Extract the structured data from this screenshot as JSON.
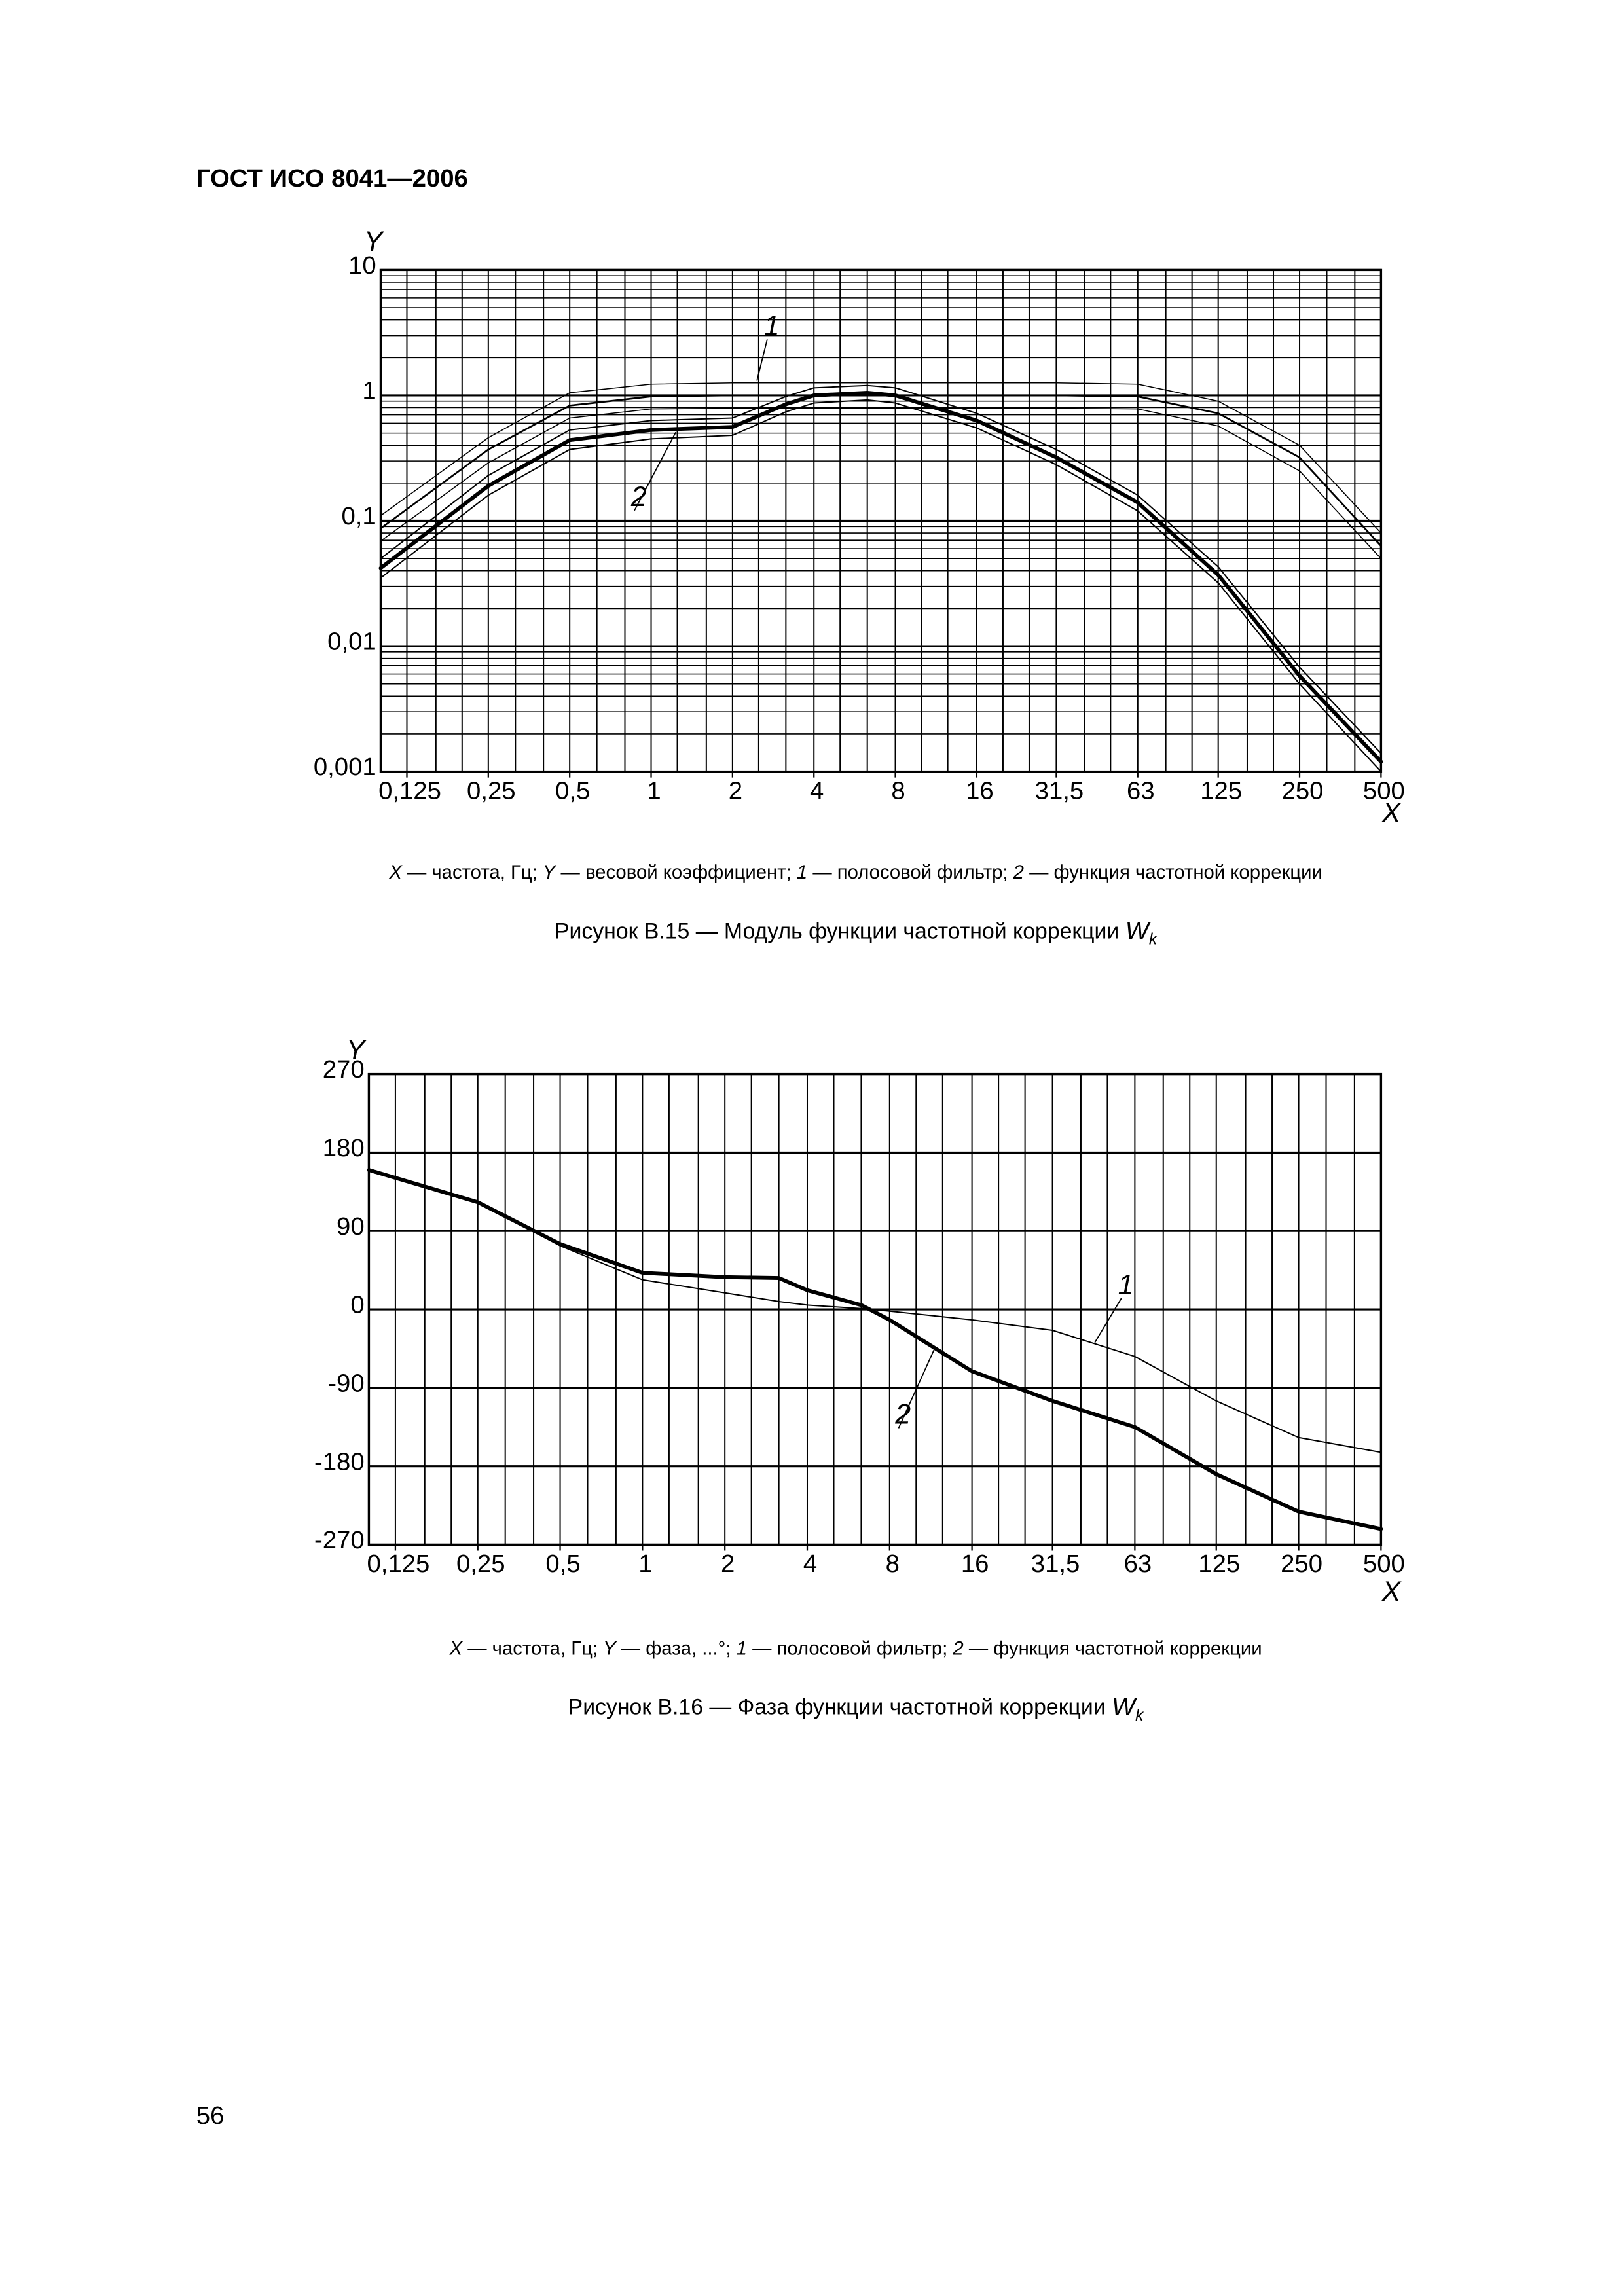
{
  "header": "ГОСТ ИСО 8041—2006",
  "page_number": "56",
  "chart_data": [
    {
      "type": "line",
      "xscale": "log",
      "yscale": "log",
      "ylabel": "Y",
      "xlabel": "X",
      "xlim": [
        0.1,
        500
      ],
      "ylim": [
        0.001,
        10
      ],
      "xticks": [
        {
          "value": 0.125,
          "label": "0,125"
        },
        {
          "value": 0.25,
          "label": "0,25"
        },
        {
          "value": 0.5,
          "label": "0,5"
        },
        1,
        2,
        4,
        8,
        16,
        {
          "value": 31.5,
          "label": "31,5"
        },
        63,
        125,
        250,
        500
      ],
      "yticks": [
        {
          "value": 0.001,
          "label": "0,001"
        },
        {
          "value": 0.01,
          "label": "0,01"
        },
        {
          "value": 0.1,
          "label": "0,1"
        },
        1,
        10
      ],
      "xgrid": [
        0.1,
        0.125,
        0.16,
        0.2,
        0.25,
        0.315,
        0.4,
        0.5,
        0.63,
        0.8,
        1,
        1.25,
        1.6,
        2,
        2.5,
        3.15,
        4,
        5,
        6.3,
        8,
        10,
        12.5,
        16,
        20,
        25,
        31.5,
        40,
        50,
        63,
        80,
        100,
        125,
        160,
        200,
        250,
        315,
        400,
        500
      ],
      "ygrid": [
        0.002,
        0.003,
        0.004,
        0.005,
        0.006,
        0.007,
        0.008,
        0.009,
        0.02,
        0.03,
        0.04,
        0.05,
        0.06,
        0.07,
        0.08,
        0.09,
        0.2,
        0.3,
        0.4,
        0.5,
        0.6,
        0.7,
        0.8,
        0.9,
        2,
        3,
        4,
        5,
        6,
        7,
        8,
        9
      ],
      "x": [
        0.1,
        0.25,
        0.5,
        1,
        2,
        3.15,
        4,
        6.3,
        8,
        16,
        31.5,
        63,
        125,
        250,
        500
      ],
      "series": [
        {
          "name": "1",
          "color": "#000000",
          "width": 1.2,
          "values": [
            0.087,
            0.37,
            0.83,
            0.98,
            1,
            1,
            1,
            1,
            1,
            1,
            1,
            0.98,
            0.72,
            0.32,
            0.063
          ]
        },
        {
          "color": "#000000",
          "width": 0.7,
          "values": [
            0.11,
            0.46,
            1.05,
            1.23,
            1.26,
            1.26,
            1.26,
            1.26,
            1.26,
            1.26,
            1.26,
            1.23,
            0.9,
            0.4,
            0.08
          ]
        },
        {
          "color": "#000000",
          "width": 0.7,
          "values": [
            0.069,
            0.29,
            0.66,
            0.78,
            0.79,
            0.79,
            0.79,
            0.79,
            0.79,
            0.79,
            0.79,
            0.78,
            0.57,
            0.25,
            0.05
          ]
        },
        {
          "name": "2",
          "color": "#000000",
          "width": 2.6,
          "values": [
            0.042,
            0.19,
            0.44,
            0.53,
            0.56,
            0.85,
            1.0,
            1.05,
            1.0,
            0.63,
            0.32,
            0.14,
            0.037,
            0.0058,
            0.0012
          ]
        },
        {
          "color": "#000000",
          "width": 0.9,
          "values": [
            0.05,
            0.23,
            0.53,
            0.63,
            0.66,
            0.98,
            1.15,
            1.2,
            1.15,
            0.72,
            0.37,
            0.16,
            0.043,
            0.0068,
            0.0014
          ]
        },
        {
          "color": "#000000",
          "width": 0.9,
          "values": [
            0.035,
            0.16,
            0.37,
            0.45,
            0.48,
            0.74,
            0.87,
            0.92,
            0.87,
            0.55,
            0.28,
            0.12,
            0.032,
            0.005,
            0.001
          ]
        }
      ],
      "note": [
        {
          "text": "X",
          "italic": true
        },
        {
          "text": " — частота, Гц; ",
          "italic": false
        },
        {
          "text": "Y",
          "italic": true
        },
        {
          "text": " — весовой коэффициент; ",
          "italic": false
        },
        {
          "text": "1",
          "italic": true
        },
        {
          "text": " — полосовой фильтр; ",
          "italic": false
        },
        {
          "text": "2",
          "italic": true
        },
        {
          "text": " — функция частотной коррекции",
          "italic": false
        }
      ],
      "caption": "Рисунок В.15 — Модуль функции частотной коррекции ",
      "caption_symbol": "W",
      "caption_subscript": "k"
    },
    {
      "type": "line",
      "xscale": "log",
      "yscale": "linear",
      "ylabel": "Y",
      "xlabel": "X",
      "xlim": [
        0.1,
        500
      ],
      "ylim": [
        -270,
        270
      ],
      "xticks": [
        {
          "value": 0.125,
          "label": "0,125"
        },
        {
          "value": 0.25,
          "label": "0,25"
        },
        {
          "value": 0.5,
          "label": "0,5"
        },
        1,
        2,
        4,
        8,
        16,
        {
          "value": 31.5,
          "label": "31,5"
        },
        63,
        125,
        250,
        500
      ],
      "yticks": [
        -270,
        -180,
        -90,
        0,
        90,
        180,
        270
      ],
      "xgrid": [
        0.1,
        0.125,
        0.16,
        0.2,
        0.25,
        0.315,
        0.4,
        0.5,
        0.63,
        0.8,
        1,
        1.25,
        1.6,
        2,
        2.5,
        3.15,
        4,
        5,
        6.3,
        8,
        10,
        12.5,
        16,
        20,
        25,
        31.5,
        40,
        50,
        63,
        80,
        100,
        125,
        160,
        200,
        250,
        315,
        400,
        500
      ],
      "x": [
        0.1,
        0.25,
        0.5,
        1,
        2,
        3.15,
        4,
        6.3,
        8,
        16,
        31.5,
        63,
        125,
        250,
        500
      ],
      "series": [
        {
          "name": "1",
          "color": "#000000",
          "width": 0.9,
          "values": [
            160,
            123,
            73,
            34,
            19,
            9,
            5,
            1,
            -2,
            -12,
            -24,
            -54,
            -105,
            -147,
            -164
          ]
        },
        {
          "name": "2",
          "color": "#000000",
          "width": 2.6,
          "values": [
            160,
            123,
            75,
            42,
            37,
            36,
            22,
            5,
            -12,
            -71,
            -105,
            -135,
            -189,
            -232,
            -252
          ]
        }
      ],
      "note": [
        {
          "text": "X",
          "italic": true
        },
        {
          "text": " — частота, Гц; ",
          "italic": false
        },
        {
          "text": "Y",
          "italic": true
        },
        {
          "text": " — фаза, ...°; ",
          "italic": false
        },
        {
          "text": "1",
          "italic": true
        },
        {
          "text": " — полосовой фильтр; ",
          "italic": false
        },
        {
          "text": "2",
          "italic": true
        },
        {
          "text": " — функция частотной коррекции",
          "italic": false
        }
      ],
      "caption": "Рисунок В.16 — Фаза функции частотной коррекции ",
      "caption_symbol": "W",
      "caption_subscript": "k"
    }
  ]
}
